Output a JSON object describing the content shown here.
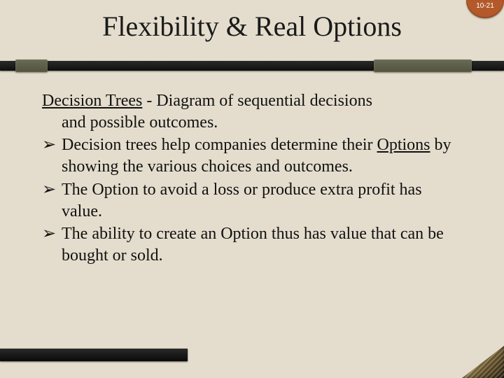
{
  "page_label": "10-21",
  "title": "Flexibility & Real Options",
  "colors": {
    "background": "#e4ddcd",
    "text": "#111111",
    "badge_bg": "#b45a2a",
    "bar_dark": "#1a1a1a",
    "bar_olive": "#595a45"
  },
  "fonts": {
    "title_size_pt": 40,
    "body_size_pt": 24,
    "family": "Times New Roman"
  },
  "definition": {
    "term": "Decision Trees",
    "sep": " - ",
    "text_line1": "Diagram of sequential decisions",
    "text_line2": "and possible outcomes."
  },
  "bullets": [
    {
      "mark": "➢",
      "pre": "Decision trees help companies determine their ",
      "underlined": "Options",
      "post": " by showing the various choices and outcomes."
    },
    {
      "mark": "➢",
      "text": "The Option to avoid a loss or produce extra profit has value."
    },
    {
      "mark": "➢",
      "text": "The ability to create an Option thus has value that can be bought or sold."
    }
  ]
}
